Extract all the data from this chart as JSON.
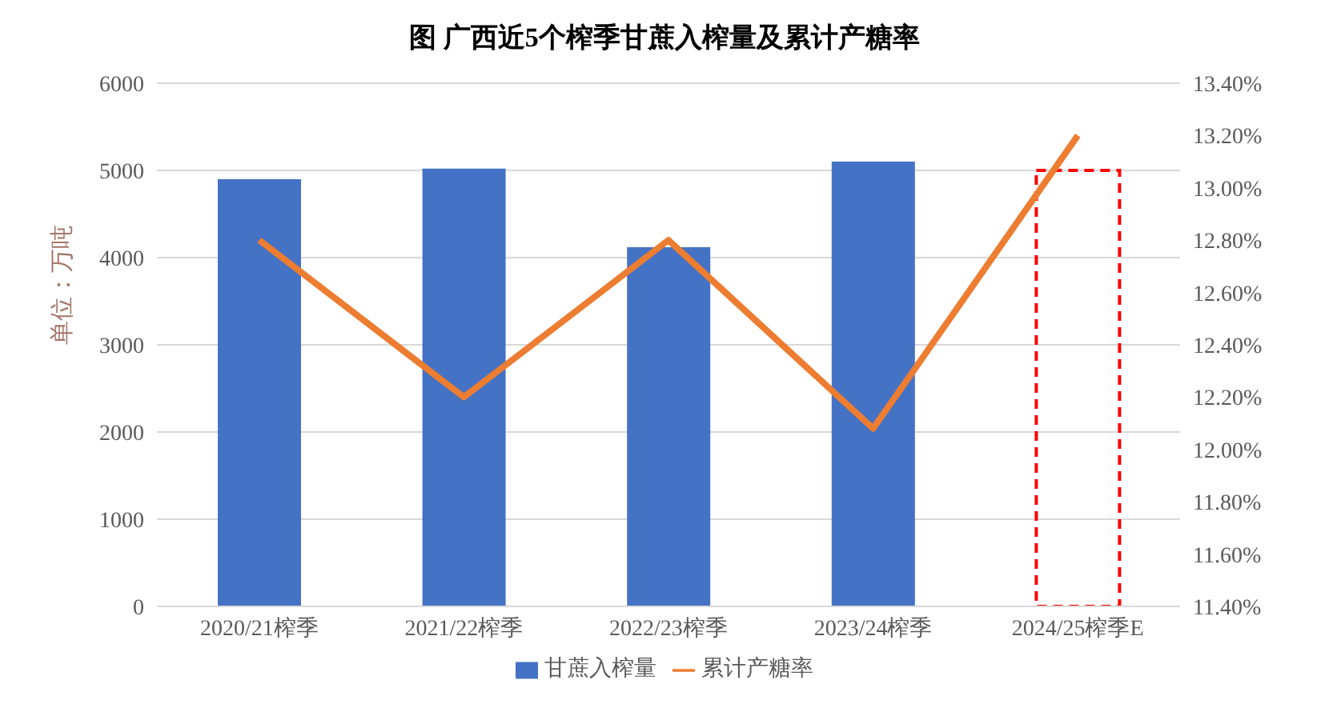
{
  "chart_data": {
    "type": "bar",
    "title": "图 广西近5个榨季甘蔗入榨量及累计产糖率",
    "ylabel": "单位：万吨",
    "categories": [
      "2020/21榨季",
      "2021/22榨季",
      "2022/23榨季",
      "2023/24榨季",
      "2024/25榨季E"
    ],
    "series": [
      {
        "name": "甘蔗入榨量",
        "color": "#4472c4",
        "values": [
          4900,
          5020,
          4120,
          5100,
          null
        ]
      },
      {
        "color": "#ff0000",
        "line_style": "dashed",
        "values": [
          null,
          null,
          null,
          null,
          5000
        ]
      },
      {
        "name": "累计产糖率",
        "type": "line",
        "axis": "y2",
        "color": "#ed7d31",
        "marker": "none",
        "values": [
          12.8,
          12.2,
          12.8,
          12.08,
          13.2
        ]
      }
    ],
    "ylim": [
      0,
      6000
    ],
    "yticks": [
      0,
      1000,
      2000,
      3000,
      4000,
      5000,
      6000
    ],
    "y2lim": [
      11.4,
      13.4
    ],
    "y2ticks": [
      {
        "value": 11.4,
        "label": "11.40%"
      },
      {
        "value": 11.6,
        "label": "11.60%"
      },
      {
        "value": 11.8,
        "label": "11.80%"
      },
      {
        "value": 12.0,
        "label": "12.00%"
      },
      {
        "value": 12.2,
        "label": "12.20%"
      },
      {
        "value": 12.4,
        "label": "12.40%"
      },
      {
        "value": 12.6,
        "label": "12.60%"
      },
      {
        "value": 12.8,
        "label": "12.80%"
      },
      {
        "value": 13.0,
        "label": "13.00%"
      },
      {
        "value": 13.2,
        "label": "13.20%"
      },
      {
        "value": 13.4,
        "label": "13.40%"
      }
    ],
    "grid": "y",
    "legend": "bottom"
  }
}
